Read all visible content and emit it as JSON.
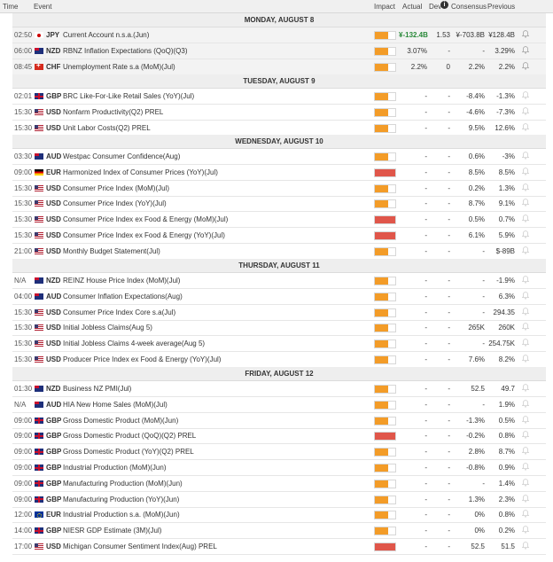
{
  "header": {
    "time": "Time",
    "event": "Event",
    "impact": "Impact",
    "actual": "Actual",
    "dev": "Dev",
    "consensus": "Consensus",
    "previous": "Previous"
  },
  "colors": {
    "medium": "#f39c28",
    "high": "#e0564a"
  },
  "sections": [
    {
      "day": "MONDAY, AUGUST 8",
      "rows": [
        {
          "time": "02:50",
          "flag": "jp",
          "cur": "JPY",
          "event": "Current Account n.s.a.(Jun)",
          "impact": "medium",
          "actual": "¥-132.4B",
          "actual_pos": true,
          "dev": "1.53",
          "cons": "¥-703.8B",
          "prev": "¥128.4B",
          "bell": true,
          "shaded": true
        },
        {
          "time": "06:00",
          "flag": "nz",
          "cur": "NZD",
          "event": "RBNZ Inflation Expectations (QoQ)(Q3)",
          "impact": "medium",
          "actual": "3.07%",
          "actual_pos": false,
          "dev": "-",
          "cons": "-",
          "prev": "3.29%",
          "bell": true,
          "shaded": true
        },
        {
          "time": "08:45",
          "flag": "ch",
          "cur": "CHF",
          "event": "Unemployment Rate s.a (MoM)(Jul)",
          "impact": "medium",
          "actual": "2.2%",
          "actual_pos": false,
          "dev": "0",
          "cons": "2.2%",
          "prev": "2.2%",
          "bell": true,
          "shaded": true
        }
      ]
    },
    {
      "day": "TUESDAY, AUGUST 9",
      "rows": [
        {
          "time": "02:01",
          "flag": "gb",
          "cur": "GBP",
          "event": "BRC Like-For-Like Retail Sales (YoY)(Jul)",
          "impact": "medium",
          "actual": "-",
          "dev": "-",
          "cons": "-8.4%",
          "prev": "-1.3%",
          "bell": true
        },
        {
          "time": "15:30",
          "flag": "us",
          "cur": "USD",
          "event": "Nonfarm Productivity(Q2) PREL",
          "impact": "medium",
          "actual": "-",
          "dev": "-",
          "cons": "-4.6%",
          "prev": "-7.3%",
          "bell": true
        },
        {
          "time": "15:30",
          "flag": "us",
          "cur": "USD",
          "event": "Unit Labor Costs(Q2) PREL",
          "impact": "medium",
          "actual": "-",
          "dev": "-",
          "cons": "9.5%",
          "prev": "12.6%",
          "bell": true
        }
      ]
    },
    {
      "day": "WEDNESDAY, AUGUST 10",
      "rows": [
        {
          "time": "03:30",
          "flag": "au",
          "cur": "AUD",
          "event": "Westpac Consumer Confidence(Aug)",
          "impact": "medium",
          "actual": "-",
          "dev": "-",
          "cons": "0.6%",
          "prev": "-3%",
          "bell": true
        },
        {
          "time": "09:00",
          "flag": "de",
          "cur": "EUR",
          "event": "Harmonized Index of Consumer Prices (YoY)(Jul)",
          "impact": "high",
          "actual": "-",
          "dev": "-",
          "cons": "8.5%",
          "prev": "8.5%",
          "bell": true
        },
        {
          "time": "15:30",
          "flag": "us",
          "cur": "USD",
          "event": "Consumer Price Index (MoM)(Jul)",
          "impact": "medium",
          "actual": "-",
          "dev": "-",
          "cons": "0.2%",
          "prev": "1.3%",
          "bell": true
        },
        {
          "time": "15:30",
          "flag": "us",
          "cur": "USD",
          "event": "Consumer Price Index (YoY)(Jul)",
          "impact": "medium",
          "actual": "-",
          "dev": "-",
          "cons": "8.7%",
          "prev": "9.1%",
          "bell": true
        },
        {
          "time": "15:30",
          "flag": "us",
          "cur": "USD",
          "event": "Consumer Price Index ex Food & Energy (MoM)(Jul)",
          "impact": "high",
          "actual": "-",
          "dev": "-",
          "cons": "0.5%",
          "prev": "0.7%",
          "bell": true
        },
        {
          "time": "15:30",
          "flag": "us",
          "cur": "USD",
          "event": "Consumer Price Index ex Food & Energy (YoY)(Jul)",
          "impact": "high",
          "actual": "-",
          "dev": "-",
          "cons": "6.1%",
          "prev": "5.9%",
          "bell": true
        },
        {
          "time": "21:00",
          "flag": "us",
          "cur": "USD",
          "event": "Monthly Budget Statement(Jul)",
          "impact": "medium",
          "actual": "-",
          "dev": "-",
          "cons": "-",
          "prev": "$-89B",
          "bell": true
        }
      ]
    },
    {
      "day": "THURSDAY, AUGUST 11",
      "rows": [
        {
          "time": "N/A",
          "flag": "nz",
          "cur": "NZD",
          "event": "REINZ House Price Index (MoM)(Jul)",
          "impact": "medium",
          "actual": "-",
          "dev": "-",
          "cons": "-",
          "prev": "-1.9%",
          "bell": true
        },
        {
          "time": "04:00",
          "flag": "au",
          "cur": "AUD",
          "event": "Consumer Inflation Expectations(Aug)",
          "impact": "medium",
          "actual": "-",
          "dev": "-",
          "cons": "-",
          "prev": "6.3%",
          "bell": true
        },
        {
          "time": "15:30",
          "flag": "us",
          "cur": "USD",
          "event": "Consumer Price Index Core s.a(Jul)",
          "impact": "medium",
          "actual": "-",
          "dev": "-",
          "cons": "-",
          "prev": "294.35",
          "bell": true
        },
        {
          "time": "15:30",
          "flag": "us",
          "cur": "USD",
          "event": "Initial Jobless Claims(Aug 5)",
          "impact": "medium",
          "actual": "-",
          "dev": "-",
          "cons": "265K",
          "prev": "260K",
          "bell": true
        },
        {
          "time": "15:30",
          "flag": "us",
          "cur": "USD",
          "event": "Initial Jobless Claims 4-week average(Aug 5)",
          "impact": "medium",
          "actual": "-",
          "dev": "-",
          "cons": "-",
          "prev": "254.75K",
          "bell": true
        },
        {
          "time": "15:30",
          "flag": "us",
          "cur": "USD",
          "event": "Producer Price Index ex Food & Energy (YoY)(Jul)",
          "impact": "medium",
          "actual": "-",
          "dev": "-",
          "cons": "7.6%",
          "prev": "8.2%",
          "bell": true
        }
      ]
    },
    {
      "day": "FRIDAY, AUGUST 12",
      "rows": [
        {
          "time": "01:30",
          "flag": "nz",
          "cur": "NZD",
          "event": "Business NZ PMI(Jul)",
          "impact": "medium",
          "actual": "-",
          "dev": "-",
          "cons": "52.5",
          "prev": "49.7",
          "bell": true
        },
        {
          "time": "N/A",
          "flag": "au",
          "cur": "AUD",
          "event": "HIA New Home Sales (MoM)(Jul)",
          "impact": "medium",
          "actual": "-",
          "dev": "-",
          "cons": "-",
          "prev": "1.9%",
          "bell": true
        },
        {
          "time": "09:00",
          "flag": "gb",
          "cur": "GBP",
          "event": "Gross Domestic Product (MoM)(Jun)",
          "impact": "medium",
          "actual": "-",
          "dev": "-",
          "cons": "-1.3%",
          "prev": "0.5%",
          "bell": true
        },
        {
          "time": "09:00",
          "flag": "gb",
          "cur": "GBP",
          "event": "Gross Domestic Product (QoQ)(Q2) PREL",
          "impact": "high",
          "actual": "-",
          "dev": "-",
          "cons": "-0.2%",
          "prev": "0.8%",
          "bell": true
        },
        {
          "time": "09:00",
          "flag": "gb",
          "cur": "GBP",
          "event": "Gross Domestic Product (YoY)(Q2) PREL",
          "impact": "medium",
          "actual": "-",
          "dev": "-",
          "cons": "2.8%",
          "prev": "8.7%",
          "bell": true
        },
        {
          "time": "09:00",
          "flag": "gb",
          "cur": "GBP",
          "event": "Industrial Production (MoM)(Jun)",
          "impact": "medium",
          "actual": "-",
          "dev": "-",
          "cons": "-0.8%",
          "prev": "0.9%",
          "bell": true
        },
        {
          "time": "09:00",
          "flag": "gb",
          "cur": "GBP",
          "event": "Manufacturing Production (MoM)(Jun)",
          "impact": "medium",
          "actual": "-",
          "dev": "-",
          "cons": "-",
          "prev": "1.4%",
          "bell": true
        },
        {
          "time": "09:00",
          "flag": "gb",
          "cur": "GBP",
          "event": "Manufacturing Production (YoY)(Jun)",
          "impact": "medium",
          "actual": "-",
          "dev": "-",
          "cons": "1.3%",
          "prev": "2.3%",
          "bell": true
        },
        {
          "time": "12:00",
          "flag": "eu",
          "cur": "EUR",
          "event": "Industrial Production s.a. (MoM)(Jun)",
          "impact": "medium",
          "actual": "-",
          "dev": "-",
          "cons": "0%",
          "prev": "0.8%",
          "bell": true
        },
        {
          "time": "14:00",
          "flag": "gb",
          "cur": "GBP",
          "event": "NIESR GDP Estimate (3M)(Jul)",
          "impact": "medium",
          "actual": "-",
          "dev": "-",
          "cons": "0%",
          "prev": "0.2%",
          "bell": true
        },
        {
          "time": "17:00",
          "flag": "us",
          "cur": "USD",
          "event": "Michigan Consumer Sentiment Index(Aug) PREL",
          "impact": "high",
          "actual": "-",
          "dev": "-",
          "cons": "52.5",
          "prev": "51.5",
          "bell": true
        }
      ]
    }
  ]
}
